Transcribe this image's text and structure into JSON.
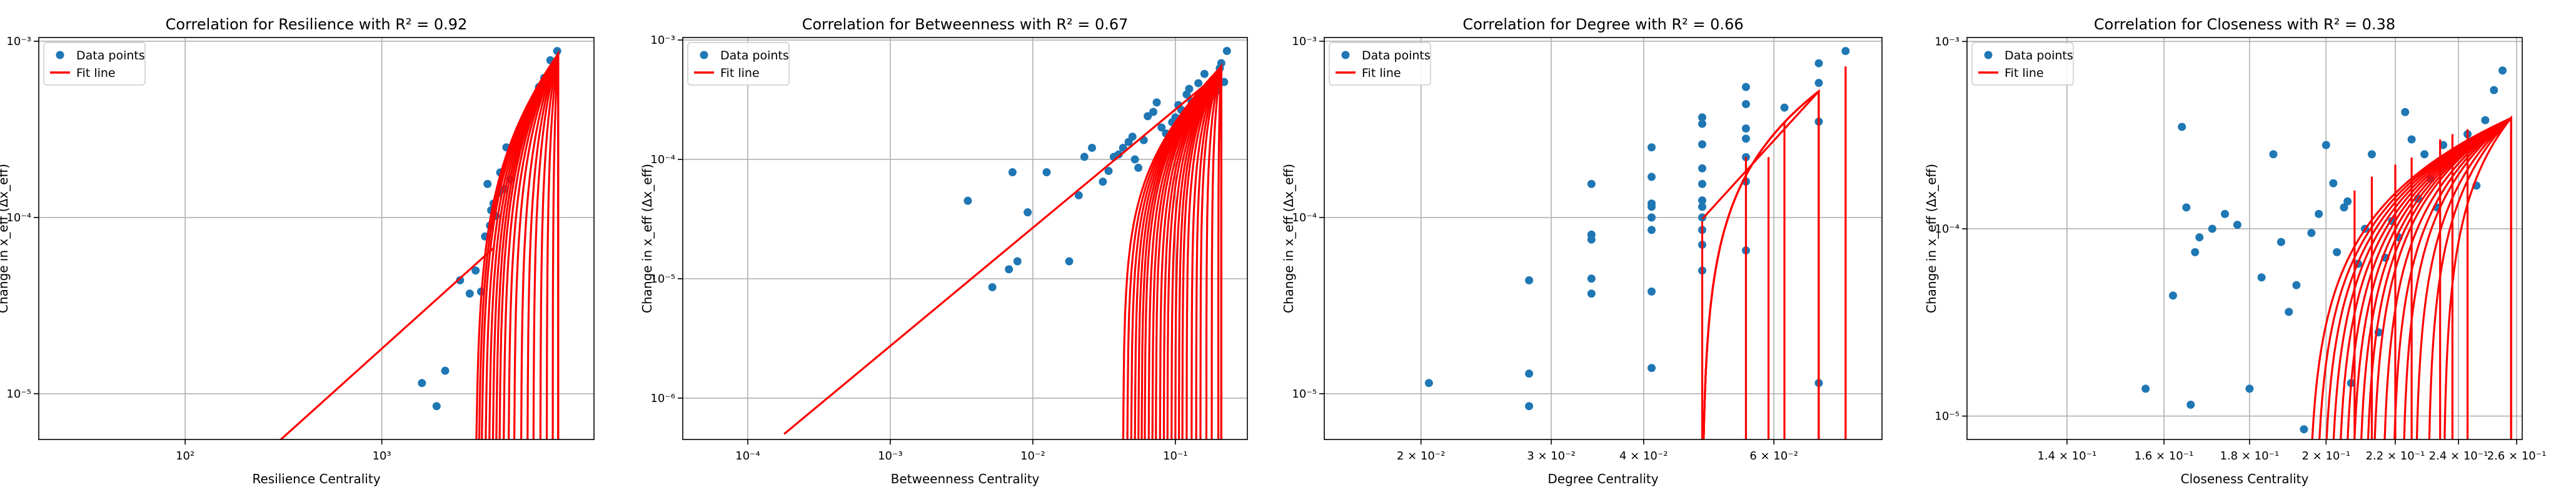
{
  "colors": {
    "points": "#1f77b4",
    "fit": "#ff0000",
    "grid": "#b0b0b0",
    "axis": "#000000"
  },
  "chart_data": [
    {
      "type": "scatter",
      "title": "Correlation for Resilience with R² = 0.92",
      "xlabel": "Resilience Centrality",
      "ylabel": "Change in x_eff (Δx_eff)",
      "xscale": "log",
      "yscale": "log",
      "xlim": [
        18,
        12000
      ],
      "ylim": [
        5.5e-06,
        0.00105
      ],
      "xticks": [
        {
          "v": 100,
          "label": "10²"
        },
        {
          "v": 1000,
          "label": "10³"
        }
      ],
      "yticks": [
        {
          "v": 1e-05,
          "label": "10⁻⁵"
        },
        {
          "v": 0.0001,
          "label": "10⁻⁴"
        },
        {
          "v": 0.001,
          "label": "10⁻³"
        }
      ],
      "legend": {
        "position": "upper-left",
        "entries": [
          "Data points",
          "Fit line"
        ]
      },
      "points": {
        "x": [
          1600,
          1900,
          2100,
          2500,
          2800,
          3000,
          3200,
          3350,
          3450,
          3550,
          3600,
          3700,
          3800,
          3950,
          4000,
          4200,
          4300,
          4500,
          4800,
          5000,
          5200,
          5600,
          5900,
          6300,
          6700,
          7200,
          7800
        ],
        "y": [
          1.15e-05,
          8.5e-06,
          1.35e-05,
          4.4e-05,
          3.7e-05,
          5e-05,
          3.8e-05,
          7.8e-05,
          0.000155,
          9e-05,
          0.00011,
          0.00012,
          0.000102,
          0.000138,
          0.00018,
          0.000145,
          0.00025,
          0.000165,
          0.000255,
          0.000315,
          0.00034,
          0.00038,
          0.00044,
          0.00055,
          0.00062,
          0.00078,
          0.00088
        ]
      },
      "fit_line": {
        "x": [
          290,
          3700
        ],
        "y": [
          5.2e-06,
          6.7e-05
        ]
      },
      "fit_curves": {
        "x0": [
          3000,
          3100,
          3200,
          3350,
          3500,
          3650,
          3800,
          3950,
          4150,
          4400,
          4700,
          5100,
          5500,
          5900,
          6400,
          6900,
          7400,
          7900
        ],
        "x_end": 7900,
        "y_top": 0.00085
      }
    },
    {
      "type": "scatter",
      "title": "Correlation for Betweenness with R² = 0.67",
      "xlabel": "Betweenness Centrality",
      "ylabel": "Change in x_eff (Δx_eff)",
      "xscale": "log",
      "yscale": "log",
      "xlim": [
        3.5e-05,
        0.32
      ],
      "ylim": [
        4.5e-07,
        0.00105
      ],
      "xticks": [
        {
          "v": 0.0001,
          "label": "10⁻⁴"
        },
        {
          "v": 0.001,
          "label": "10⁻³"
        },
        {
          "v": 0.01,
          "label": "10⁻²"
        },
        {
          "v": 0.1,
          "label": "10⁻¹"
        }
      ],
      "yticks": [
        {
          "v": 1e-06,
          "label": "10⁻⁶"
        },
        {
          "v": 1e-05,
          "label": "10⁻⁵"
        },
        {
          "v": 0.0001,
          "label": "10⁻⁴"
        },
        {
          "v": 0.001,
          "label": "10⁻³"
        }
      ],
      "legend": {
        "position": "upper-left",
        "entries": [
          "Data points",
          "Fit line"
        ]
      },
      "points": {
        "x": [
          0.0035,
          0.0052,
          0.0068,
          0.0072,
          0.0078,
          0.0092,
          0.0125,
          0.018,
          0.021,
          0.023,
          0.026,
          0.031,
          0.034,
          0.037,
          0.04,
          0.043,
          0.047,
          0.05,
          0.052,
          0.055,
          0.06,
          0.064,
          0.07,
          0.074,
          0.08,
          0.086,
          0.095,
          0.1,
          0.105,
          0.11,
          0.12,
          0.125,
          0.13,
          0.145,
          0.16,
          0.175,
          0.195,
          0.205,
          0.21,
          0.22,
          0.23
        ],
        "y": [
          4.5e-05,
          8.5e-06,
          1.2e-05,
          7.8e-05,
          1.4e-05,
          3.6e-05,
          7.8e-05,
          1.4e-05,
          5e-05,
          0.000105,
          0.000125,
          6.5e-05,
          8e-05,
          0.000105,
          0.00011,
          0.000125,
          0.00014,
          0.000155,
          0.0001,
          8.5e-05,
          0.000145,
          0.00023,
          0.00025,
          0.0003,
          0.000185,
          0.000165,
          0.000205,
          0.000225,
          0.000285,
          0.00026,
          0.00035,
          0.00039,
          0.000305,
          0.000435,
          0.00052,
          0.00033,
          0.000375,
          0.00058,
          0.00064,
          0.000445,
          0.00081
        ]
      },
      "fit_line": {
        "x": [
          0.00018,
          0.2
        ],
        "y": [
          5e-07,
          0.00052
        ]
      },
      "fit_curves": {
        "x0": [
          0.043,
          0.046,
          0.049,
          0.052,
          0.055,
          0.058,
          0.061,
          0.065,
          0.069,
          0.073,
          0.078,
          0.083,
          0.088,
          0.094,
          0.1,
          0.106,
          0.112,
          0.12,
          0.13,
          0.14,
          0.15,
          0.165,
          0.18,
          0.2
        ],
        "x_end": 0.21,
        "y_top": 0.0006
      }
    },
    {
      "type": "scatter",
      "title": "Correlation for Degree with R² = 0.66",
      "xlabel": "Degree Centrality",
      "ylabel": "Change in x_eff (Δx_eff)",
      "xscale": "log",
      "yscale": "log",
      "xlim": [
        0.0148,
        0.084
      ],
      "ylim": [
        5.5e-06,
        0.00105
      ],
      "xticks": [
        {
          "v": 0.02,
          "label": "2 × 10⁻²"
        },
        {
          "v": 0.03,
          "label": "3 × 10⁻²"
        },
        {
          "v": 0.04,
          "label": "4 × 10⁻²"
        },
        {
          "v": 0.06,
          "label": "6 × 10⁻²"
        }
      ],
      "yticks": [
        {
          "v": 1e-05,
          "label": "10⁻⁵"
        },
        {
          "v": 0.0001,
          "label": "10⁻⁴"
        },
        {
          "v": 0.001,
          "label": "10⁻³"
        }
      ],
      "legend": {
        "position": "upper-left",
        "entries": [
          "Data points",
          "Fit line"
        ]
      },
      "points": {
        "x": [
          0.0205,
          0.028,
          0.028,
          0.028,
          0.034,
          0.034,
          0.034,
          0.034,
          0.034,
          0.041,
          0.041,
          0.041,
          0.041,
          0.041,
          0.041,
          0.041,
          0.041,
          0.048,
          0.048,
          0.048,
          0.048,
          0.048,
          0.048,
          0.048,
          0.048,
          0.048,
          0.048,
          0.048,
          0.055,
          0.055,
          0.055,
          0.055,
          0.055,
          0.055,
          0.055,
          0.062,
          0.069,
          0.069,
          0.069,
          0.069,
          0.075
        ],
        "y": [
          1.15e-05,
          8.5e-06,
          1.3e-05,
          4.4e-05,
          3.7e-05,
          4.5e-05,
          7.5e-05,
          8e-05,
          0.000155,
          1.4e-05,
          3.8e-05,
          8.5e-05,
          0.0001,
          0.000115,
          0.00012,
          0.00017,
          0.00025,
          5e-05,
          7e-05,
          8.5e-05,
          0.0001,
          0.000115,
          0.000125,
          0.000155,
          0.00019,
          0.00026,
          0.00034,
          0.00037,
          6.5e-05,
          0.00016,
          0.00022,
          0.00028,
          0.00032,
          0.00044,
          0.00055,
          0.00042,
          1.15e-05,
          0.00035,
          0.00058,
          0.00075,
          0.00088
        ]
      },
      "fit_line": {
        "x": [
          0.048,
          0.069
        ],
        "y": [
          9.8e-05,
          0.00052
        ]
      },
      "fit_curves": {
        "x0": [
          0.048,
          0.048,
          0.048,
          0.048
        ],
        "x_end": 0.069,
        "y_top": 0.00052
      },
      "fit_verticals": [
        {
          "x": 0.048,
          "y": 9.5e-05
        },
        {
          "x": 0.055,
          "y": 0.00022
        },
        {
          "x": 0.059,
          "y": 0.00022
        },
        {
          "x": 0.062,
          "y": 0.00035
        },
        {
          "x": 0.069,
          "y": 0.00052
        },
        {
          "x": 0.075,
          "y": 0.00072
        }
      ]
    },
    {
      "type": "scatter",
      "title": "Correlation for Closeness with R² = 0.38",
      "xlabel": "Closeness Centrality",
      "ylabel": "Change in x_eff (Δx_eff)",
      "xscale": "log",
      "yscale": "log",
      "xlim": [
        0.122,
        0.262
      ],
      "ylim": [
        7.5e-06,
        0.00105
      ],
      "xticks": [
        {
          "v": 0.14,
          "label": "1.4 × 10⁻¹"
        },
        {
          "v": 0.16,
          "label": "1.6 × 10⁻¹"
        },
        {
          "v": 0.18,
          "label": "1.8 × 10⁻¹"
        },
        {
          "v": 0.2,
          "label": "2 × 10⁻¹"
        },
        {
          "v": 0.22,
          "label": "2.2 × 10⁻¹"
        },
        {
          "v": 0.24,
          "label": "2.4 × 10⁻¹"
        },
        {
          "v": 0.26,
          "label": "2.6 × 10⁻¹"
        }
      ],
      "yticks": [
        {
          "v": 1e-05,
          "label": "10⁻⁵"
        },
        {
          "v": 0.0001,
          "label": "10⁻⁴"
        },
        {
          "v": 0.001,
          "label": "10⁻³"
        }
      ],
      "legend": {
        "position": "upper-left",
        "entries": [
          "Data points",
          "Fit line"
        ]
      },
      "points": {
        "x": [
          0.156,
          0.162,
          0.164,
          0.165,
          0.166,
          0.167,
          0.168,
          0.171,
          0.174,
          0.177,
          0.18,
          0.183,
          0.186,
          0.188,
          0.19,
          0.192,
          0.194,
          0.196,
          0.198,
          0.2,
          0.202,
          0.203,
          0.205,
          0.206,
          0.207,
          0.209,
          0.211,
          0.213,
          0.215,
          0.217,
          0.219,
          0.221,
          0.223,
          0.225,
          0.227,
          0.229,
          0.231,
          0.233,
          0.235,
          0.237,
          0.24,
          0.243,
          0.246,
          0.249,
          0.252,
          0.255
        ],
        "y": [
          1.4e-05,
          4.4e-05,
          0.00035,
          0.00013,
          1.15e-05,
          7.5e-05,
          9e-05,
          0.0001,
          0.00012,
          0.000105,
          1.4e-05,
          5.5e-05,
          0.00025,
          8.5e-05,
          3.6e-05,
          5e-05,
          8.5e-06,
          9.5e-05,
          0.00012,
          0.00028,
          0.000175,
          7.5e-05,
          0.00013,
          0.00014,
          1.5e-05,
          6.5e-05,
          0.0001,
          0.00025,
          2.8e-05,
          7e-05,
          0.00011,
          9e-05,
          0.00042,
          0.0003,
          0.000145,
          0.00025,
          0.000185,
          0.00013,
          0.00028,
          0.00022,
          0.00025,
          0.00032,
          0.00017,
          0.00038,
          0.00055,
          0.0007
        ]
      },
      "fit_curves": {
        "x0": [
          0.195,
          0.197,
          0.199,
          0.201,
          0.203,
          0.205,
          0.207,
          0.209,
          0.211,
          0.213,
          0.216,
          0.219,
          0.222,
          0.226,
          0.23,
          0.235
        ],
        "x_end": 0.258,
        "y_top": 0.00039
      },
      "fit_verticals": [
        {
          "x": 0.208,
          "y": 0.00016
        },
        {
          "x": 0.213,
          "y": 0.00019
        },
        {
          "x": 0.22,
          "y": 0.00022
        },
        {
          "x": 0.225,
          "y": 0.00024
        },
        {
          "x": 0.234,
          "y": 0.0003
        },
        {
          "x": 0.238,
          "y": 0.00032
        },
        {
          "x": 0.243,
          "y": 0.00034
        }
      ]
    }
  ]
}
